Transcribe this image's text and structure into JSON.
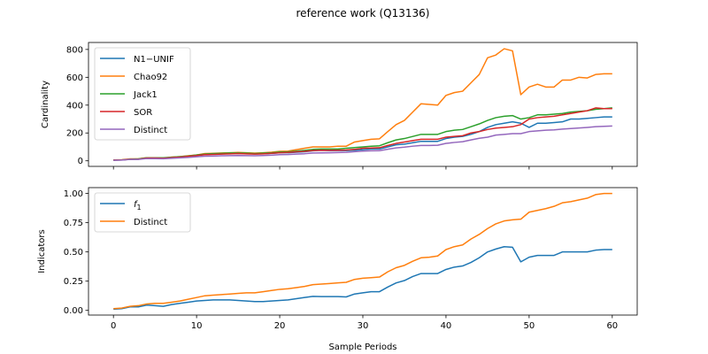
{
  "title": "reference work (Q13136)",
  "colors": {
    "blue": "#1f77b4",
    "orange": "#ff7f0e",
    "green": "#2ca02c",
    "red": "#d62728",
    "purple": "#9467bd"
  },
  "chart_data": [
    {
      "type": "line",
      "ylabel": "Cardinality",
      "xlabel": "",
      "xlim": [
        -3.0,
        63.0
      ],
      "ylim": [
        -40,
        850
      ],
      "xticks": [
        0,
        10,
        20,
        30,
        40,
        50,
        60
      ],
      "yticks": [
        0,
        200,
        400,
        600,
        800
      ],
      "show_xtick_labels": false,
      "legend": "top-left",
      "grid": false,
      "series": [
        {
          "name": "N1−UNIF",
          "color": "#1f77b4",
          "x": [
            0,
            1,
            2,
            3,
            4,
            5,
            6,
            7,
            8,
            9,
            10,
            11,
            12,
            13,
            14,
            15,
            16,
            17,
            18,
            19,
            20,
            21,
            22,
            23,
            24,
            25,
            26,
            27,
            28,
            29,
            30,
            31,
            32,
            33,
            34,
            35,
            36,
            37,
            38,
            39,
            40,
            41,
            42,
            43,
            44,
            45,
            46,
            47,
            48,
            49,
            50,
            51,
            52,
            53,
            54,
            55,
            56,
            57,
            58,
            59,
            60
          ],
          "y": [
            5,
            6,
            12,
            12,
            20,
            20,
            18,
            22,
            27,
            32,
            38,
            45,
            48,
            50,
            52,
            53,
            52,
            50,
            51,
            53,
            58,
            58,
            62,
            65,
            72,
            75,
            73,
            74,
            74,
            76,
            80,
            85,
            85,
            100,
            115,
            120,
            130,
            140,
            140,
            140,
            160,
            170,
            175,
            190,
            210,
            240,
            260,
            270,
            280,
            270,
            240,
            270,
            270,
            275,
            280,
            300,
            300,
            305,
            310,
            315,
            315
          ]
        },
        {
          "name": "Chao92",
          "color": "#ff7f0e",
          "x": [
            0,
            1,
            2,
            3,
            4,
            5,
            6,
            7,
            8,
            9,
            10,
            11,
            12,
            13,
            14,
            15,
            16,
            17,
            18,
            19,
            20,
            21,
            22,
            23,
            24,
            25,
            26,
            27,
            28,
            29,
            30,
            31,
            32,
            33,
            34,
            35,
            36,
            37,
            38,
            39,
            40,
            41,
            42,
            43,
            44,
            45,
            46,
            47,
            48,
            49,
            50,
            51,
            52,
            53,
            54,
            55,
            56,
            57,
            58,
            59,
            60
          ],
          "y": [
            6,
            8,
            14,
            14,
            22,
            22,
            20,
            26,
            30,
            36,
            42,
            52,
            54,
            56,
            58,
            60,
            58,
            55,
            58,
            62,
            68,
            70,
            80,
            90,
            100,
            100,
            100,
            105,
            105,
            135,
            145,
            155,
            158,
            210,
            260,
            290,
            350,
            410,
            405,
            400,
            470,
            490,
            500,
            560,
            620,
            740,
            760,
            805,
            790,
            475,
            530,
            550,
            530,
            530,
            580,
            580,
            600,
            595,
            620,
            625,
            625
          ]
        },
        {
          "name": "Jack1",
          "color": "#2ca02c",
          "x": [
            0,
            1,
            2,
            3,
            4,
            5,
            6,
            7,
            8,
            9,
            10,
            11,
            12,
            13,
            14,
            15,
            16,
            17,
            18,
            19,
            20,
            21,
            22,
            23,
            24,
            25,
            26,
            27,
            28,
            29,
            30,
            31,
            32,
            33,
            34,
            35,
            36,
            37,
            38,
            39,
            40,
            41,
            42,
            43,
            44,
            45,
            46,
            47,
            48,
            49,
            50,
            51,
            52,
            53,
            54,
            55,
            56,
            57,
            58,
            59,
            60
          ],
          "y": [
            5,
            6,
            12,
            14,
            22,
            22,
            22,
            26,
            30,
            35,
            42,
            48,
            52,
            54,
            56,
            56,
            55,
            52,
            55,
            58,
            63,
            65,
            70,
            75,
            82,
            85,
            85,
            85,
            90,
            95,
            100,
            105,
            108,
            130,
            150,
            160,
            175,
            190,
            190,
            190,
            210,
            220,
            225,
            245,
            265,
            290,
            310,
            320,
            325,
            300,
            310,
            330,
            330,
            335,
            340,
            350,
            355,
            360,
            370,
            375,
            380
          ]
        },
        {
          "name": "SOR",
          "color": "#d62728",
          "x": [
            0,
            1,
            2,
            3,
            4,
            5,
            6,
            7,
            8,
            9,
            10,
            11,
            12,
            13,
            14,
            15,
            16,
            17,
            18,
            19,
            20,
            21,
            22,
            23,
            24,
            25,
            26,
            27,
            28,
            29,
            30,
            31,
            32,
            33,
            34,
            35,
            36,
            37,
            38,
            39,
            40,
            41,
            42,
            43,
            44,
            45,
            46,
            47,
            48,
            49,
            50,
            51,
            52,
            53,
            54,
            55,
            56,
            57,
            58,
            59,
            60
          ],
          "y": [
            5,
            6,
            11,
            12,
            20,
            20,
            19,
            23,
            27,
            32,
            38,
            44,
            46,
            48,
            50,
            52,
            50,
            48,
            50,
            54,
            58,
            60,
            65,
            68,
            74,
            76,
            75,
            76,
            78,
            82,
            90,
            92,
            94,
            110,
            125,
            135,
            145,
            155,
            155,
            155,
            170,
            175,
            180,
            200,
            210,
            225,
            235,
            240,
            245,
            260,
            300,
            310,
            315,
            320,
            330,
            340,
            350,
            360,
            380,
            375,
            375
          ]
        },
        {
          "name": "Distinct",
          "color": "#9467bd",
          "x": [
            0,
            1,
            2,
            3,
            4,
            5,
            6,
            7,
            8,
            9,
            10,
            11,
            12,
            13,
            14,
            15,
            16,
            17,
            18,
            19,
            20,
            21,
            22,
            23,
            24,
            25,
            26,
            27,
            28,
            29,
            30,
            31,
            32,
            33,
            34,
            35,
            36,
            37,
            38,
            39,
            40,
            41,
            42,
            43,
            44,
            45,
            46,
            47,
            48,
            49,
            50,
            51,
            52,
            53,
            54,
            55,
            56,
            57,
            58,
            59,
            60
          ],
          "y": [
            4,
            5,
            10,
            10,
            16,
            16,
            15,
            18,
            21,
            24,
            29,
            33,
            34,
            36,
            37,
            38,
            37,
            36,
            38,
            40,
            44,
            45,
            48,
            51,
            56,
            57,
            58,
            59,
            61,
            66,
            70,
            72,
            73,
            83,
            93,
            98,
            105,
            110,
            110,
            112,
            125,
            132,
            137,
            150,
            162,
            170,
            185,
            190,
            195,
            195,
            210,
            215,
            220,
            222,
            228,
            232,
            236,
            240,
            245,
            248,
            250
          ]
        }
      ]
    },
    {
      "type": "line",
      "ylabel": "Indicators",
      "xlabel": "Sample Periods",
      "xlim": [
        -3.0,
        63.0
      ],
      "ylim": [
        -0.04,
        1.05
      ],
      "xticks": [
        0,
        10,
        20,
        30,
        40,
        50,
        60
      ],
      "yticks": [
        0.0,
        0.25,
        0.5,
        0.75,
        1.0
      ],
      "xtick_labels": [
        "0",
        "10",
        "20",
        "30",
        "40",
        "50",
        "60"
      ],
      "ytick_labels": [
        "0.00",
        "0.25",
        "0.50",
        "0.75",
        "1.00"
      ],
      "legend": "top-left",
      "grid": false,
      "series": [
        {
          "name": "f",
          "name_subscript": "1",
          "color": "#1f77b4",
          "x": [
            0,
            1,
            2,
            3,
            4,
            5,
            6,
            7,
            8,
            9,
            10,
            11,
            12,
            13,
            14,
            15,
            16,
            17,
            18,
            19,
            20,
            21,
            22,
            23,
            24,
            25,
            26,
            27,
            28,
            29,
            30,
            31,
            32,
            33,
            34,
            35,
            36,
            37,
            38,
            39,
            40,
            41,
            42,
            43,
            44,
            45,
            46,
            47,
            48,
            49,
            50,
            51,
            52,
            53,
            54,
            55,
            56,
            57,
            58,
            59,
            60
          ],
          "y": [
            0.01,
            0.015,
            0.03,
            0.03,
            0.045,
            0.04,
            0.035,
            0.05,
            0.06,
            0.07,
            0.08,
            0.085,
            0.09,
            0.09,
            0.09,
            0.085,
            0.08,
            0.075,
            0.075,
            0.08,
            0.085,
            0.09,
            0.1,
            0.11,
            0.12,
            0.118,
            0.118,
            0.118,
            0.115,
            0.14,
            0.15,
            0.16,
            0.16,
            0.2,
            0.235,
            0.255,
            0.29,
            0.315,
            0.315,
            0.315,
            0.35,
            0.37,
            0.38,
            0.41,
            0.45,
            0.5,
            0.525,
            0.545,
            0.54,
            0.415,
            0.455,
            0.47,
            0.47,
            0.47,
            0.5,
            0.5,
            0.5,
            0.5,
            0.515,
            0.52,
            0.52
          ]
        },
        {
          "name": "Distinct",
          "color": "#ff7f0e",
          "x": [
            0,
            1,
            2,
            3,
            4,
            5,
            6,
            7,
            8,
            9,
            10,
            11,
            12,
            13,
            14,
            15,
            16,
            17,
            18,
            19,
            20,
            21,
            22,
            23,
            24,
            25,
            26,
            27,
            28,
            29,
            30,
            31,
            32,
            33,
            34,
            35,
            36,
            37,
            38,
            39,
            40,
            41,
            42,
            43,
            44,
            45,
            46,
            47,
            48,
            49,
            50,
            51,
            52,
            53,
            54,
            55,
            56,
            57,
            58,
            59,
            60
          ],
          "y": [
            0.015,
            0.02,
            0.035,
            0.04,
            0.055,
            0.06,
            0.06,
            0.07,
            0.08,
            0.095,
            0.11,
            0.125,
            0.13,
            0.135,
            0.14,
            0.145,
            0.15,
            0.15,
            0.16,
            0.17,
            0.18,
            0.185,
            0.195,
            0.205,
            0.22,
            0.225,
            0.23,
            0.235,
            0.24,
            0.265,
            0.275,
            0.28,
            0.285,
            0.33,
            0.365,
            0.385,
            0.42,
            0.45,
            0.455,
            0.465,
            0.52,
            0.545,
            0.56,
            0.61,
            0.65,
            0.7,
            0.74,
            0.765,
            0.775,
            0.78,
            0.84,
            0.855,
            0.87,
            0.89,
            0.92,
            0.93,
            0.945,
            0.96,
            0.99,
            1.0,
            1.0
          ]
        }
      ]
    }
  ]
}
